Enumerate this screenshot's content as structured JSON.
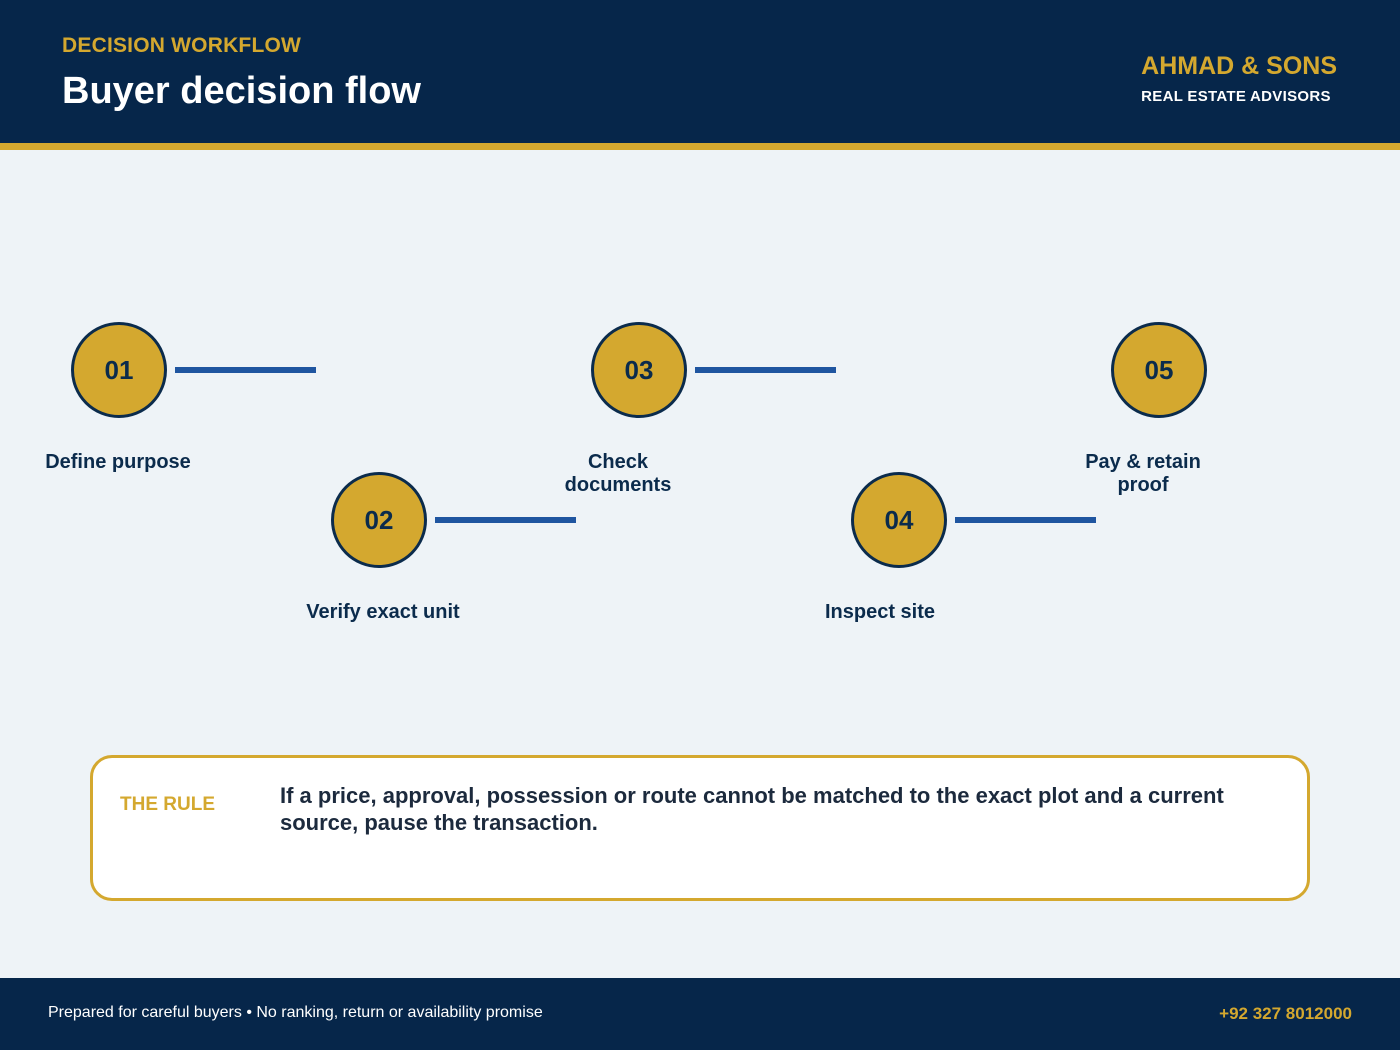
{
  "header": {
    "eyebrow": "DECISION WORKFLOW",
    "title": "Buyer decision flow",
    "brand_name": "AHMAD & SONS",
    "brand_sub": "REAL ESTATE ADVISORS"
  },
  "steps": [
    {
      "number": "01",
      "label": "Define purpose"
    },
    {
      "number": "02",
      "label": "Verify exact unit"
    },
    {
      "number": "03",
      "label": "Check documents"
    },
    {
      "number": "04",
      "label": "Inspect site"
    },
    {
      "number": "05",
      "label": "Pay & retain proof"
    }
  ],
  "rule": {
    "label": "THE RULE",
    "text": "If a price, approval, possession or route cannot be matched to the exact plot and a current source, pause the transaction."
  },
  "footer": {
    "note": "Prepared for careful buyers • No ranking, return or availability promise",
    "phone": "+92 327 8012000"
  },
  "colors": {
    "navy": "#06264a",
    "gold": "#d4a82f",
    "connector_blue": "#1f55a0",
    "background": "#eef3f7"
  }
}
